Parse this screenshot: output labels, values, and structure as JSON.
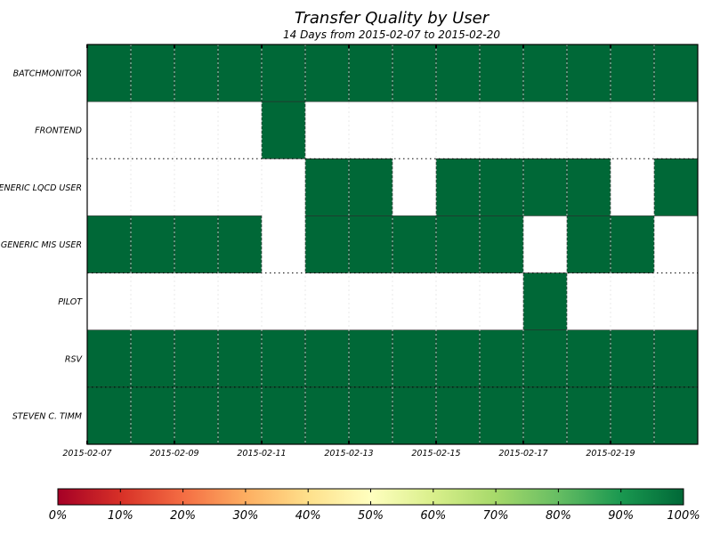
{
  "chart_data": {
    "type": "heatmap",
    "title": "Transfer Quality by User",
    "subtitle": "14 Days from 2015-02-07 to 2015-02-20",
    "x_tick_labels": [
      "2015-02-07",
      "2015-02-09",
      "2015-02-11",
      "2015-02-13",
      "2015-02-15",
      "2015-02-17",
      "2015-02-19"
    ],
    "days": [
      "2015-02-07",
      "2015-02-08",
      "2015-02-09",
      "2015-02-10",
      "2015-02-11",
      "2015-02-12",
      "2015-02-13",
      "2015-02-14",
      "2015-02-15",
      "2015-02-16",
      "2015-02-17",
      "2015-02-18",
      "2015-02-19",
      "2015-02-20"
    ],
    "rows": [
      {
        "name": "BATCHMONITOR",
        "values": [
          100,
          100,
          100,
          100,
          100,
          100,
          100,
          100,
          100,
          100,
          100,
          100,
          100,
          100
        ]
      },
      {
        "name": "FRONTEND",
        "values": [
          null,
          null,
          null,
          null,
          100,
          null,
          null,
          null,
          null,
          null,
          null,
          null,
          null,
          null
        ]
      },
      {
        "name": "GENERIC LQCD USER",
        "values": [
          null,
          null,
          null,
          null,
          null,
          100,
          100,
          null,
          100,
          100,
          100,
          100,
          null,
          100
        ]
      },
      {
        "name": "GENERIC MIS USER",
        "values": [
          100,
          100,
          100,
          100,
          null,
          100,
          100,
          100,
          100,
          100,
          null,
          100,
          100,
          null
        ]
      },
      {
        "name": "PILOT",
        "values": [
          null,
          null,
          null,
          null,
          null,
          null,
          null,
          null,
          null,
          null,
          100,
          null,
          null,
          null
        ]
      },
      {
        "name": "RSV",
        "values": [
          100,
          100,
          100,
          100,
          100,
          100,
          100,
          100,
          100,
          100,
          100,
          100,
          100,
          100
        ]
      },
      {
        "name": "STEVEN C. TIMM",
        "values": [
          100,
          100,
          100,
          100,
          100,
          100,
          100,
          100,
          100,
          100,
          100,
          100,
          100,
          100
        ]
      }
    ],
    "colorbar": {
      "range": [
        0,
        100
      ],
      "tick_labels": [
        "0%",
        "10%",
        "20%",
        "30%",
        "40%",
        "50%",
        "60%",
        "70%",
        "80%",
        "90%",
        "100%"
      ],
      "colors": [
        "#a50026",
        "#d73027",
        "#f46d43",
        "#fdae61",
        "#fee08b",
        "#ffffbf",
        "#d9ef8b",
        "#a6d96a",
        "#66bd63",
        "#1a9850",
        "#006837"
      ]
    }
  }
}
